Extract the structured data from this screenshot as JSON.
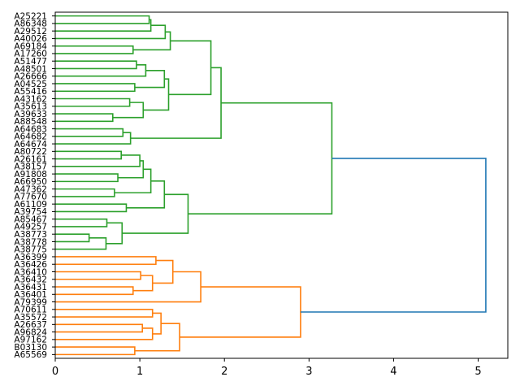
{
  "chart_data": {
    "type": "dendrogram",
    "orientation": "left",
    "title": "",
    "xlabel": "",
    "ylabel": "",
    "xlim": [
      0,
      5.35
    ],
    "xticks": [
      0,
      1,
      2,
      3,
      4,
      5
    ],
    "grid": false,
    "colors": {
      "green": "#2ca02c",
      "orange": "#ff7f0e",
      "root": "#1f77b4"
    },
    "leaves": [
      "A25221",
      "A86348",
      "A29512",
      "A40026",
      "A69184",
      "A17260",
      "A51477",
      "A48501",
      "A26666",
      "A04525",
      "A55416",
      "A43162",
      "A35613",
      "A39633",
      "A88548",
      "A64683",
      "A64682",
      "A64674",
      "A80722",
      "A26161",
      "A38157",
      "A91808",
      "A66950",
      "A47362",
      "A77670",
      "A61109",
      "A39754",
      "A85467",
      "A49257",
      "A38773",
      "A38778",
      "A38775",
      "A36399",
      "A36426",
      "A36410",
      "A36432",
      "A36431",
      "A36401",
      "A79399",
      "A70611",
      "A35572",
      "A26637",
      "A96824",
      "A97162",
      "B03130",
      "A65569"
    ],
    "tree": {
      "h": 5.09,
      "color": "#1f77b4",
      "c": [
        {
          "h": 3.27,
          "color": "#2ca02c",
          "c": [
            {
              "h": 1.96,
              "c": [
                {
                  "h": 1.84,
                  "c": [
                    {
                      "h": 1.36,
                      "c": [
                        {
                          "h": 1.3,
                          "c": [
                            {
                              "h": 1.13,
                              "c": [
                                {
                                  "h": 1.11,
                                  "c": [
                                    0,
                                    1
                                  ]
                                },
                                2
                              ]
                            },
                            3
                          ]
                        },
                        {
                          "h": 0.92,
                          "c": [
                            4,
                            5
                          ]
                        }
                      ]
                    },
                    {
                      "h": 1.34,
                      "c": [
                        {
                          "h": 1.29,
                          "c": [
                            {
                              "h": 1.07,
                              "c": [
                                {
                                  "h": 0.96,
                                  "c": [
                                    6,
                                    7
                                  ]
                                },
                                8
                              ]
                            },
                            {
                              "h": 0.94,
                              "c": [
                                9,
                                10
                              ]
                            }
                          ]
                        },
                        {
                          "h": 1.04,
                          "c": [
                            {
                              "h": 0.88,
                              "c": [
                                11,
                                12
                              ]
                            },
                            {
                              "h": 0.68,
                              "c": [
                                13,
                                14
                              ]
                            }
                          ]
                        }
                      ]
                    }
                  ]
                },
                {
                  "h": 0.89,
                  "c": [
                    {
                      "h": 0.8,
                      "c": [
                        15,
                        16
                      ]
                    },
                    17
                  ]
                }
              ]
            },
            {
              "h": 1.57,
              "c": [
                {
                  "h": 1.29,
                  "c": [
                    {
                      "h": 1.13,
                      "c": [
                        {
                          "h": 1.04,
                          "c": [
                            {
                              "h": 1.0,
                              "c": [
                                {
                                  "h": 0.78,
                                  "c": [
                                    18,
                                    19
                                  ]
                                },
                                20
                              ]
                            },
                            {
                              "h": 0.74,
                              "c": [
                                21,
                                22
                              ]
                            }
                          ]
                        },
                        {
                          "h": 0.7,
                          "c": [
                            23,
                            24
                          ]
                        }
                      ]
                    },
                    {
                      "h": 0.84,
                      "c": [
                        25,
                        26
                      ]
                    }
                  ]
                },
                {
                  "h": 0.79,
                  "c": [
                    {
                      "h": 0.61,
                      "c": [
                        27,
                        28
                      ]
                    },
                    {
                      "h": 0.6,
                      "c": [
                        {
                          "h": 0.4,
                          "c": [
                            29,
                            30
                          ]
                        },
                        31
                      ]
                    }
                  ]
                }
              ]
            }
          ]
        },
        {
          "h": 2.9,
          "color": "#ff7f0e",
          "c": [
            {
              "h": 1.72,
              "c": [
                {
                  "h": 1.39,
                  "c": [
                    {
                      "h": 1.19,
                      "c": [
                        32,
                        33
                      ]
                    },
                    {
                      "h": 1.15,
                      "c": [
                        {
                          "h": 1.01,
                          "c": [
                            34,
                            35
                          ]
                        },
                        {
                          "h": 0.92,
                          "c": [
                            36,
                            37
                          ]
                        }
                      ]
                    }
                  ]
                },
                38
              ]
            },
            {
              "h": 1.47,
              "c": [
                {
                  "h": 1.25,
                  "c": [
                    {
                      "h": 1.15,
                      "c": [
                        39,
                        40
                      ]
                    },
                    {
                      "h": 1.15,
                      "c": [
                        {
                          "h": 1.03,
                          "c": [
                            41,
                            42
                          ]
                        },
                        43
                      ]
                    }
                  ]
                },
                {
                  "h": 0.94,
                  "c": [
                    44,
                    45
                  ]
                }
              ]
            }
          ]
        }
      ]
    }
  }
}
